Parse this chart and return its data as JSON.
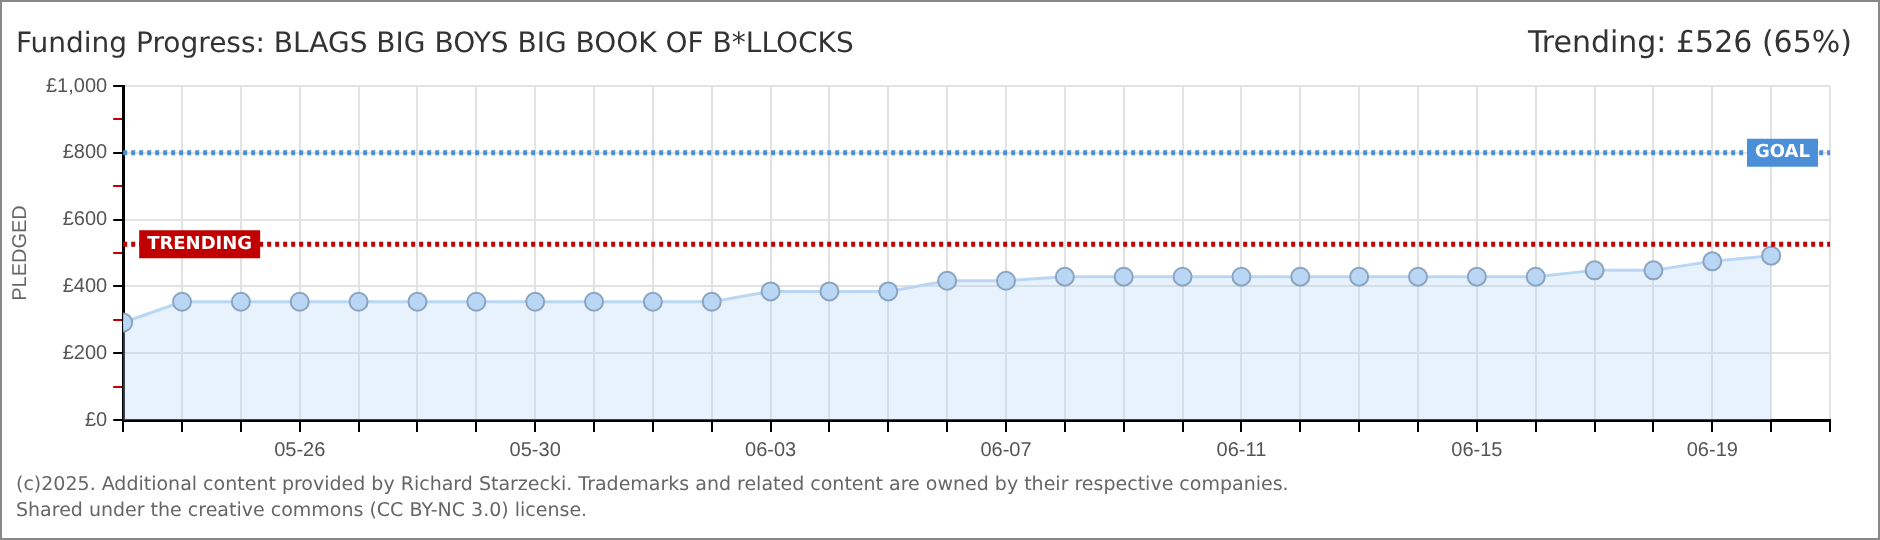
{
  "chart_data": {
    "type": "area",
    "title": "Funding Progress: BLAGS BIG BOYS BIG BOOK OF B*LLOCKS",
    "subtitle": "Trending: £526 (65%)",
    "ylabel": "PLEDGED",
    "x": [
      "2025-05-23",
      "2025-05-24",
      "2025-05-25",
      "2025-05-26",
      "2025-05-27",
      "2025-05-28",
      "2025-05-29",
      "2025-05-30",
      "2025-05-31",
      "2025-06-01",
      "2025-06-02",
      "2025-06-03",
      "2025-06-04",
      "2025-06-05",
      "2025-06-06",
      "2025-06-07",
      "2025-06-08",
      "2025-06-09",
      "2025-06-10",
      "2025-06-11",
      "2025-06-12",
      "2025-06-13",
      "2025-06-14",
      "2025-06-15",
      "2025-06-16",
      "2025-06-17",
      "2025-06-18",
      "2025-06-19",
      "2025-06-20"
    ],
    "series": [
      {
        "color": "#b9d7f5",
        "values": [
          292,
          354,
          354,
          354,
          354,
          354,
          354,
          354,
          354,
          354,
          354,
          385,
          385,
          385,
          417,
          417,
          429,
          429,
          429,
          429,
          429,
          429,
          429,
          429,
          429,
          448,
          448,
          475,
          492
        ]
      }
    ],
    "xlim": [
      "2025-05-23",
      "2025-06-21"
    ],
    "xticks": [
      {
        "value": "2025-05-23",
        "label": null
      },
      {
        "value": "2025-05-24",
        "label": null
      },
      {
        "value": "2025-05-25",
        "label": null
      },
      {
        "value": "2025-05-26",
        "label": "05-26"
      },
      {
        "value": "2025-05-27",
        "label": null
      },
      {
        "value": "2025-05-28",
        "label": null
      },
      {
        "value": "2025-05-29",
        "label": null
      },
      {
        "value": "2025-05-30",
        "label": "05-30"
      },
      {
        "value": "2025-05-31",
        "label": null
      },
      {
        "value": "2025-06-01",
        "label": null
      },
      {
        "value": "2025-06-02",
        "label": null
      },
      {
        "value": "2025-06-03",
        "label": "06-03"
      },
      {
        "value": "2025-06-04",
        "label": null
      },
      {
        "value": "2025-06-05",
        "label": null
      },
      {
        "value": "2025-06-06",
        "label": null
      },
      {
        "value": "2025-06-07",
        "label": "06-07"
      },
      {
        "value": "2025-06-08",
        "label": null
      },
      {
        "value": "2025-06-09",
        "label": null
      },
      {
        "value": "2025-06-10",
        "label": null
      },
      {
        "value": "2025-06-11",
        "label": "06-11"
      },
      {
        "value": "2025-06-12",
        "label": null
      },
      {
        "value": "2025-06-13",
        "label": null
      },
      {
        "value": "2025-06-14",
        "label": null
      },
      {
        "value": "2025-06-15",
        "label": "06-15"
      },
      {
        "value": "2025-06-16",
        "label": null
      },
      {
        "value": "2025-06-17",
        "label": null
      },
      {
        "value": "2025-06-18",
        "label": null
      },
      {
        "value": "2025-06-19",
        "label": "06-19"
      },
      {
        "value": "2025-06-20",
        "label": null
      },
      {
        "value": "2025-06-21",
        "label": null
      }
    ],
    "ylim": [
      0,
      1000
    ],
    "yticks": [
      {
        "value": 0,
        "label": "£0"
      },
      {
        "value": 100,
        "label": null
      },
      {
        "value": 200,
        "label": "£200"
      },
      {
        "value": 300,
        "label": null
      },
      {
        "value": 400,
        "label": "£400"
      },
      {
        "value": 500,
        "label": null
      },
      {
        "value": 600,
        "label": "£600"
      },
      {
        "value": 700,
        "label": null
      },
      {
        "value": 800,
        "label": "£800"
      },
      {
        "value": 900,
        "label": null
      },
      {
        "value": 1000,
        "label": "£1,000"
      }
    ],
    "ref_lines": [
      {
        "axis": "y",
        "value": 800,
        "label": "GOAL",
        "color": "#4a8fd8",
        "line_style": "dotted"
      },
      {
        "axis": "y",
        "value": 526,
        "label": "TRENDING",
        "color": "#c00000",
        "line_style": "dotted"
      }
    ],
    "grid": true,
    "marker": "circle",
    "legend": false,
    "annotations": [
      "(c)2025. Additional content provided by Richard Starzecki. Trademarks and related content are owned by their respective companies.",
      "Shared under the creative commons (CC BY-NC 3.0) license."
    ]
  }
}
